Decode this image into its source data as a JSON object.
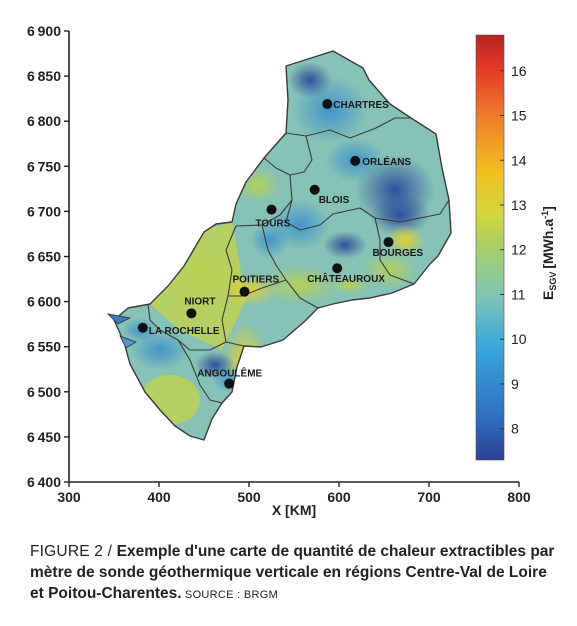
{
  "chart_data": {
    "type": "heatmap",
    "title": "",
    "xlabel": "X [KM]",
    "ylabel": "",
    "xlim": [
      300,
      800
    ],
    "ylim": [
      6400,
      6900
    ],
    "x_ticks": [
      300,
      400,
      500,
      600,
      700,
      800
    ],
    "y_ticks": [
      6400,
      6450,
      6500,
      6550,
      6600,
      6650,
      6700,
      6750,
      6800,
      6850,
      6900
    ],
    "colorbar": {
      "label_main": "E",
      "label_sub": "SGV",
      "label_unit": "[MWh.a",
      "label_exp": "-1",
      "label_close": "]",
      "range": [
        7.3,
        16.8
      ],
      "ticks": [
        8,
        9,
        10,
        11,
        12,
        13,
        14,
        15,
        16
      ],
      "colors": [
        "#2a3f94",
        "#2e6fc0",
        "#39a8dc",
        "#7cc4b8",
        "#a8cf6a",
        "#d2d63c",
        "#f2c01e",
        "#f0802a",
        "#e43a26",
        "#b52324"
      ]
    },
    "cities": [
      {
        "name": "CHARTRES",
        "x": 587,
        "y": 6819
      },
      {
        "name": "ORLÉANS",
        "x": 618,
        "y": 6756
      },
      {
        "name": "BLOIS",
        "x": 573,
        "y": 6724
      },
      {
        "name": "TOURS",
        "x": 525,
        "y": 6702
      },
      {
        "name": "BOURGES",
        "x": 655,
        "y": 6666
      },
      {
        "name": "CHÂTEAUROUX",
        "x": 598,
        "y": 6637
      },
      {
        "name": "POITIERS",
        "x": 495,
        "y": 6611
      },
      {
        "name": "NIORT",
        "x": 436,
        "y": 6587
      },
      {
        "name": "LA ROCHELLE",
        "x": 382,
        "y": 6571
      },
      {
        "name": "ANGOULÊME",
        "x": 478,
        "y": 6509
      }
    ]
  },
  "caption": {
    "label": "FIGURE 2 / ",
    "text": "Exemple d'une carte de quantité de chaleur extractibles par mètre de sonde géothermique verticale en régions Centre-Val de Loire et Poitou-Charentes.",
    "source": " SOURCE : BRGM"
  },
  "colors": {
    "axis": "#222222",
    "border": "#3a3a3a",
    "city_dot": "#111111"
  }
}
